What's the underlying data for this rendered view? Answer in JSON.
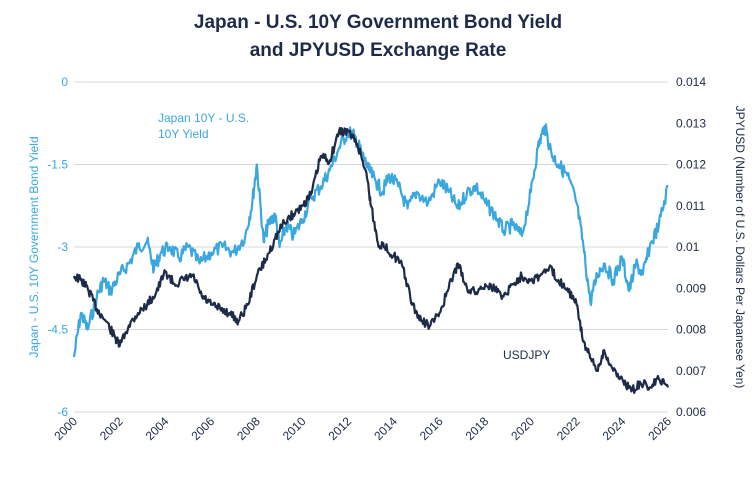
{
  "chart_data": {
    "type": "line",
    "title_line1": "Japan - U.S. 10Y Government Bond Yield",
    "title_line2": "and JPYUSD Exchange Rate",
    "x_ticks": [
      "2000",
      "2002",
      "2004",
      "2006",
      "2008",
      "2010",
      "2012",
      "2014",
      "2016",
      "2018",
      "2020",
      "2022",
      "2024",
      "2026"
    ],
    "xlim": [
      2000,
      2026
    ],
    "left_axis": {
      "label": "Japan - U.S. 10Y Government Bond Yield",
      "ticks": [
        "0",
        "-1.5",
        "-3",
        "-4.5",
        "-6"
      ],
      "tick_values": [
        0,
        -1.5,
        -3,
        -4.5,
        -6
      ],
      "ylim": [
        -6,
        0
      ],
      "color": "#3aa7df"
    },
    "right_axis": {
      "label": "JPYUSD (Number of U.S. Dollars Per Japanese Yen)",
      "ticks": [
        "0.014",
        "0.013",
        "0.012",
        "0.011",
        "0.01",
        "0.009",
        "0.008",
        "0.007",
        "0.006"
      ],
      "tick_values": [
        0.014,
        0.013,
        0.012,
        0.011,
        0.01,
        0.009,
        0.008,
        0.007,
        0.006
      ],
      "ylim": [
        0.006,
        0.014
      ],
      "color": "#1d2a48"
    },
    "grid": "horizontal",
    "series": [
      {
        "name": "Japan 10Y - U.S. 10Y Yield",
        "label_line1": "Japan 10Y - U.S.",
        "label_line2": "10Y Yield",
        "axis": "left",
        "color": "#3aa7df",
        "x": [
          2000.0,
          2000.3,
          2000.6,
          2001.0,
          2001.3,
          2001.6,
          2002.0,
          2002.4,
          2002.8,
          2003.2,
          2003.5,
          2003.8,
          2004.2,
          2004.6,
          2005.0,
          2005.5,
          2006.0,
          2006.5,
          2007.0,
          2007.5,
          2007.8,
          2008.0,
          2008.3,
          2008.5,
          2008.8,
          2009.0,
          2009.3,
          2009.6,
          2010.0,
          2010.4,
          2010.8,
          2011.2,
          2011.6,
          2012.0,
          2012.3,
          2012.6,
          2012.9,
          2013.2,
          2013.5,
          2013.8,
          2014.2,
          2014.6,
          2015.0,
          2015.5,
          2016.0,
          2016.4,
          2016.8,
          2017.2,
          2017.6,
          2018.0,
          2018.4,
          2018.8,
          2019.2,
          2019.6,
          2020.0,
          2020.3,
          2020.6,
          2020.9,
          2021.2,
          2021.6,
          2022.0,
          2022.3,
          2022.6,
          2022.9,
          2023.2,
          2023.6,
          2024.0,
          2024.3,
          2024.6,
          2024.9,
          2025.2,
          2025.6,
          2026.0
        ],
        "y": [
          -5.0,
          -4.2,
          -4.5,
          -3.9,
          -3.6,
          -3.8,
          -3.5,
          -3.3,
          -3.0,
          -2.9,
          -3.4,
          -3.1,
          -3.0,
          -3.2,
          -3.0,
          -3.3,
          -3.1,
          -3.0,
          -3.1,
          -2.8,
          -2.2,
          -1.5,
          -2.9,
          -2.6,
          -2.4,
          -3.0,
          -2.6,
          -2.8,
          -2.5,
          -2.1,
          -1.9,
          -1.6,
          -1.2,
          -0.9,
          -1.0,
          -1.3,
          -1.6,
          -1.8,
          -2.0,
          -1.7,
          -1.9,
          -2.3,
          -2.0,
          -2.2,
          -1.8,
          -2.0,
          -2.3,
          -2.0,
          -1.9,
          -2.2,
          -2.4,
          -2.7,
          -2.6,
          -2.8,
          -2.0,
          -1.2,
          -0.8,
          -1.3,
          -1.5,
          -1.7,
          -2.2,
          -3.0,
          -4.0,
          -3.5,
          -3.3,
          -3.6,
          -3.2,
          -3.8,
          -3.3,
          -3.5,
          -3.0,
          -2.6,
          -1.9
        ]
      },
      {
        "name": "USDJPY",
        "label": "USDJPY",
        "axis": "right",
        "color": "#1d2a48",
        "x": [
          2000.0,
          2000.3,
          2000.6,
          2001.0,
          2001.4,
          2001.8,
          2002.0,
          2002.4,
          2002.8,
          2003.2,
          2003.6,
          2004.0,
          2004.4,
          2004.8,
          2005.2,
          2005.6,
          2006.0,
          2006.4,
          2006.8,
          2007.2,
          2007.6,
          2008.0,
          2008.4,
          2008.8,
          2009.2,
          2009.6,
          2010.0,
          2010.4,
          2010.8,
          2011.2,
          2011.6,
          2012.0,
          2012.4,
          2012.8,
          2013.0,
          2013.3,
          2013.6,
          2014.0,
          2014.4,
          2014.8,
          2015.2,
          2015.6,
          2016.0,
          2016.4,
          2016.8,
          2017.2,
          2017.6,
          2018.0,
          2018.4,
          2018.8,
          2019.2,
          2019.6,
          2020.0,
          2020.4,
          2020.8,
          2021.2,
          2021.6,
          2022.0,
          2022.3,
          2022.6,
          2022.9,
          2023.2,
          2023.6,
          2024.0,
          2024.4,
          2024.8,
          2025.2,
          2025.6,
          2026.0
        ],
        "y": [
          0.0093,
          0.0092,
          0.009,
          0.0085,
          0.0082,
          0.0078,
          0.0076,
          0.0081,
          0.0084,
          0.0086,
          0.0089,
          0.0094,
          0.0091,
          0.0092,
          0.0093,
          0.0088,
          0.0086,
          0.0085,
          0.0084,
          0.0082,
          0.0086,
          0.0093,
          0.0097,
          0.0102,
          0.0106,
          0.0108,
          0.011,
          0.0113,
          0.0122,
          0.0121,
          0.0128,
          0.0128,
          0.0125,
          0.0118,
          0.011,
          0.0101,
          0.01,
          0.0098,
          0.0095,
          0.0086,
          0.0082,
          0.0081,
          0.0084,
          0.009,
          0.0096,
          0.009,
          0.0089,
          0.0091,
          0.009,
          0.0088,
          0.0091,
          0.0093,
          0.0092,
          0.0093,
          0.0095,
          0.0092,
          0.009,
          0.0086,
          0.0077,
          0.0073,
          0.007,
          0.0075,
          0.007,
          0.0068,
          0.0065,
          0.0067,
          0.0066,
          0.0068,
          0.0066
        ]
      }
    ]
  }
}
